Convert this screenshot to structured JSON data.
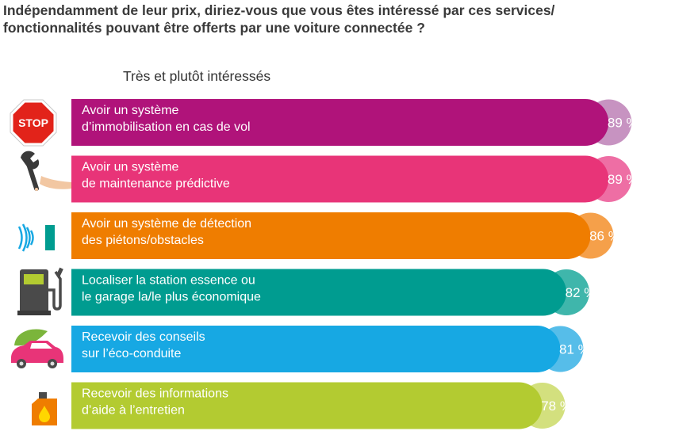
{
  "title_lines": [
    "Indépendamment de leur prix, diriez-vous que vous êtes intéressé par ces services/",
    "fonctionnalités pouvant être offerts par une voiture connectée ?"
  ],
  "subtitle": "Très et plutôt intéressés",
  "stop_sign_text": "STOP",
  "chart_data": {
    "type": "bar",
    "orientation": "horizontal",
    "title": "Indépendamment de leur prix, diriez-vous que vous êtes intéressé par ces services/fonctionnalités pouvant être offerts par une voiture connectée ?",
    "subtitle": "Très et plutôt intéressés",
    "unit": "%",
    "xlim": [
      0,
      100
    ],
    "categories": [
      [
        "Avoir un système",
        "d’immobilisation en cas de vol"
      ],
      [
        "Avoir un système",
        "de maintenance prédictive"
      ],
      [
        "Avoir un système de détection",
        "des piétons/obstacles"
      ],
      [
        "Localiser la station essence ou",
        "le garage la/le plus économique"
      ],
      [
        "Recevoir des conseils",
        "sur l’éco-conduite"
      ],
      [
        "Recevoir des informations",
        "d’aide à l’entretien"
      ]
    ],
    "values": [
      89,
      89,
      86,
      82,
      81,
      78
    ],
    "value_labels": [
      "89 %",
      "89 %",
      "86 %",
      "82 %",
      "81 %",
      "78 %"
    ],
    "bar_colors": [
      "#b0137a",
      "#e83478",
      "#ef7d00",
      "#009c90",
      "#17a8e3",
      "#b3cb31"
    ],
    "bubble_colors": [
      "#c793c1",
      "#ee6ea4",
      "#f5a04a",
      "#3fb6ab",
      "#56bde9",
      "#d3e07e"
    ],
    "icons": [
      "stop-sign-icon",
      "wrench-icon",
      "sensor-icon",
      "fuel-pump-icon",
      "eco-car-icon",
      "oil-can-icon"
    ]
  }
}
